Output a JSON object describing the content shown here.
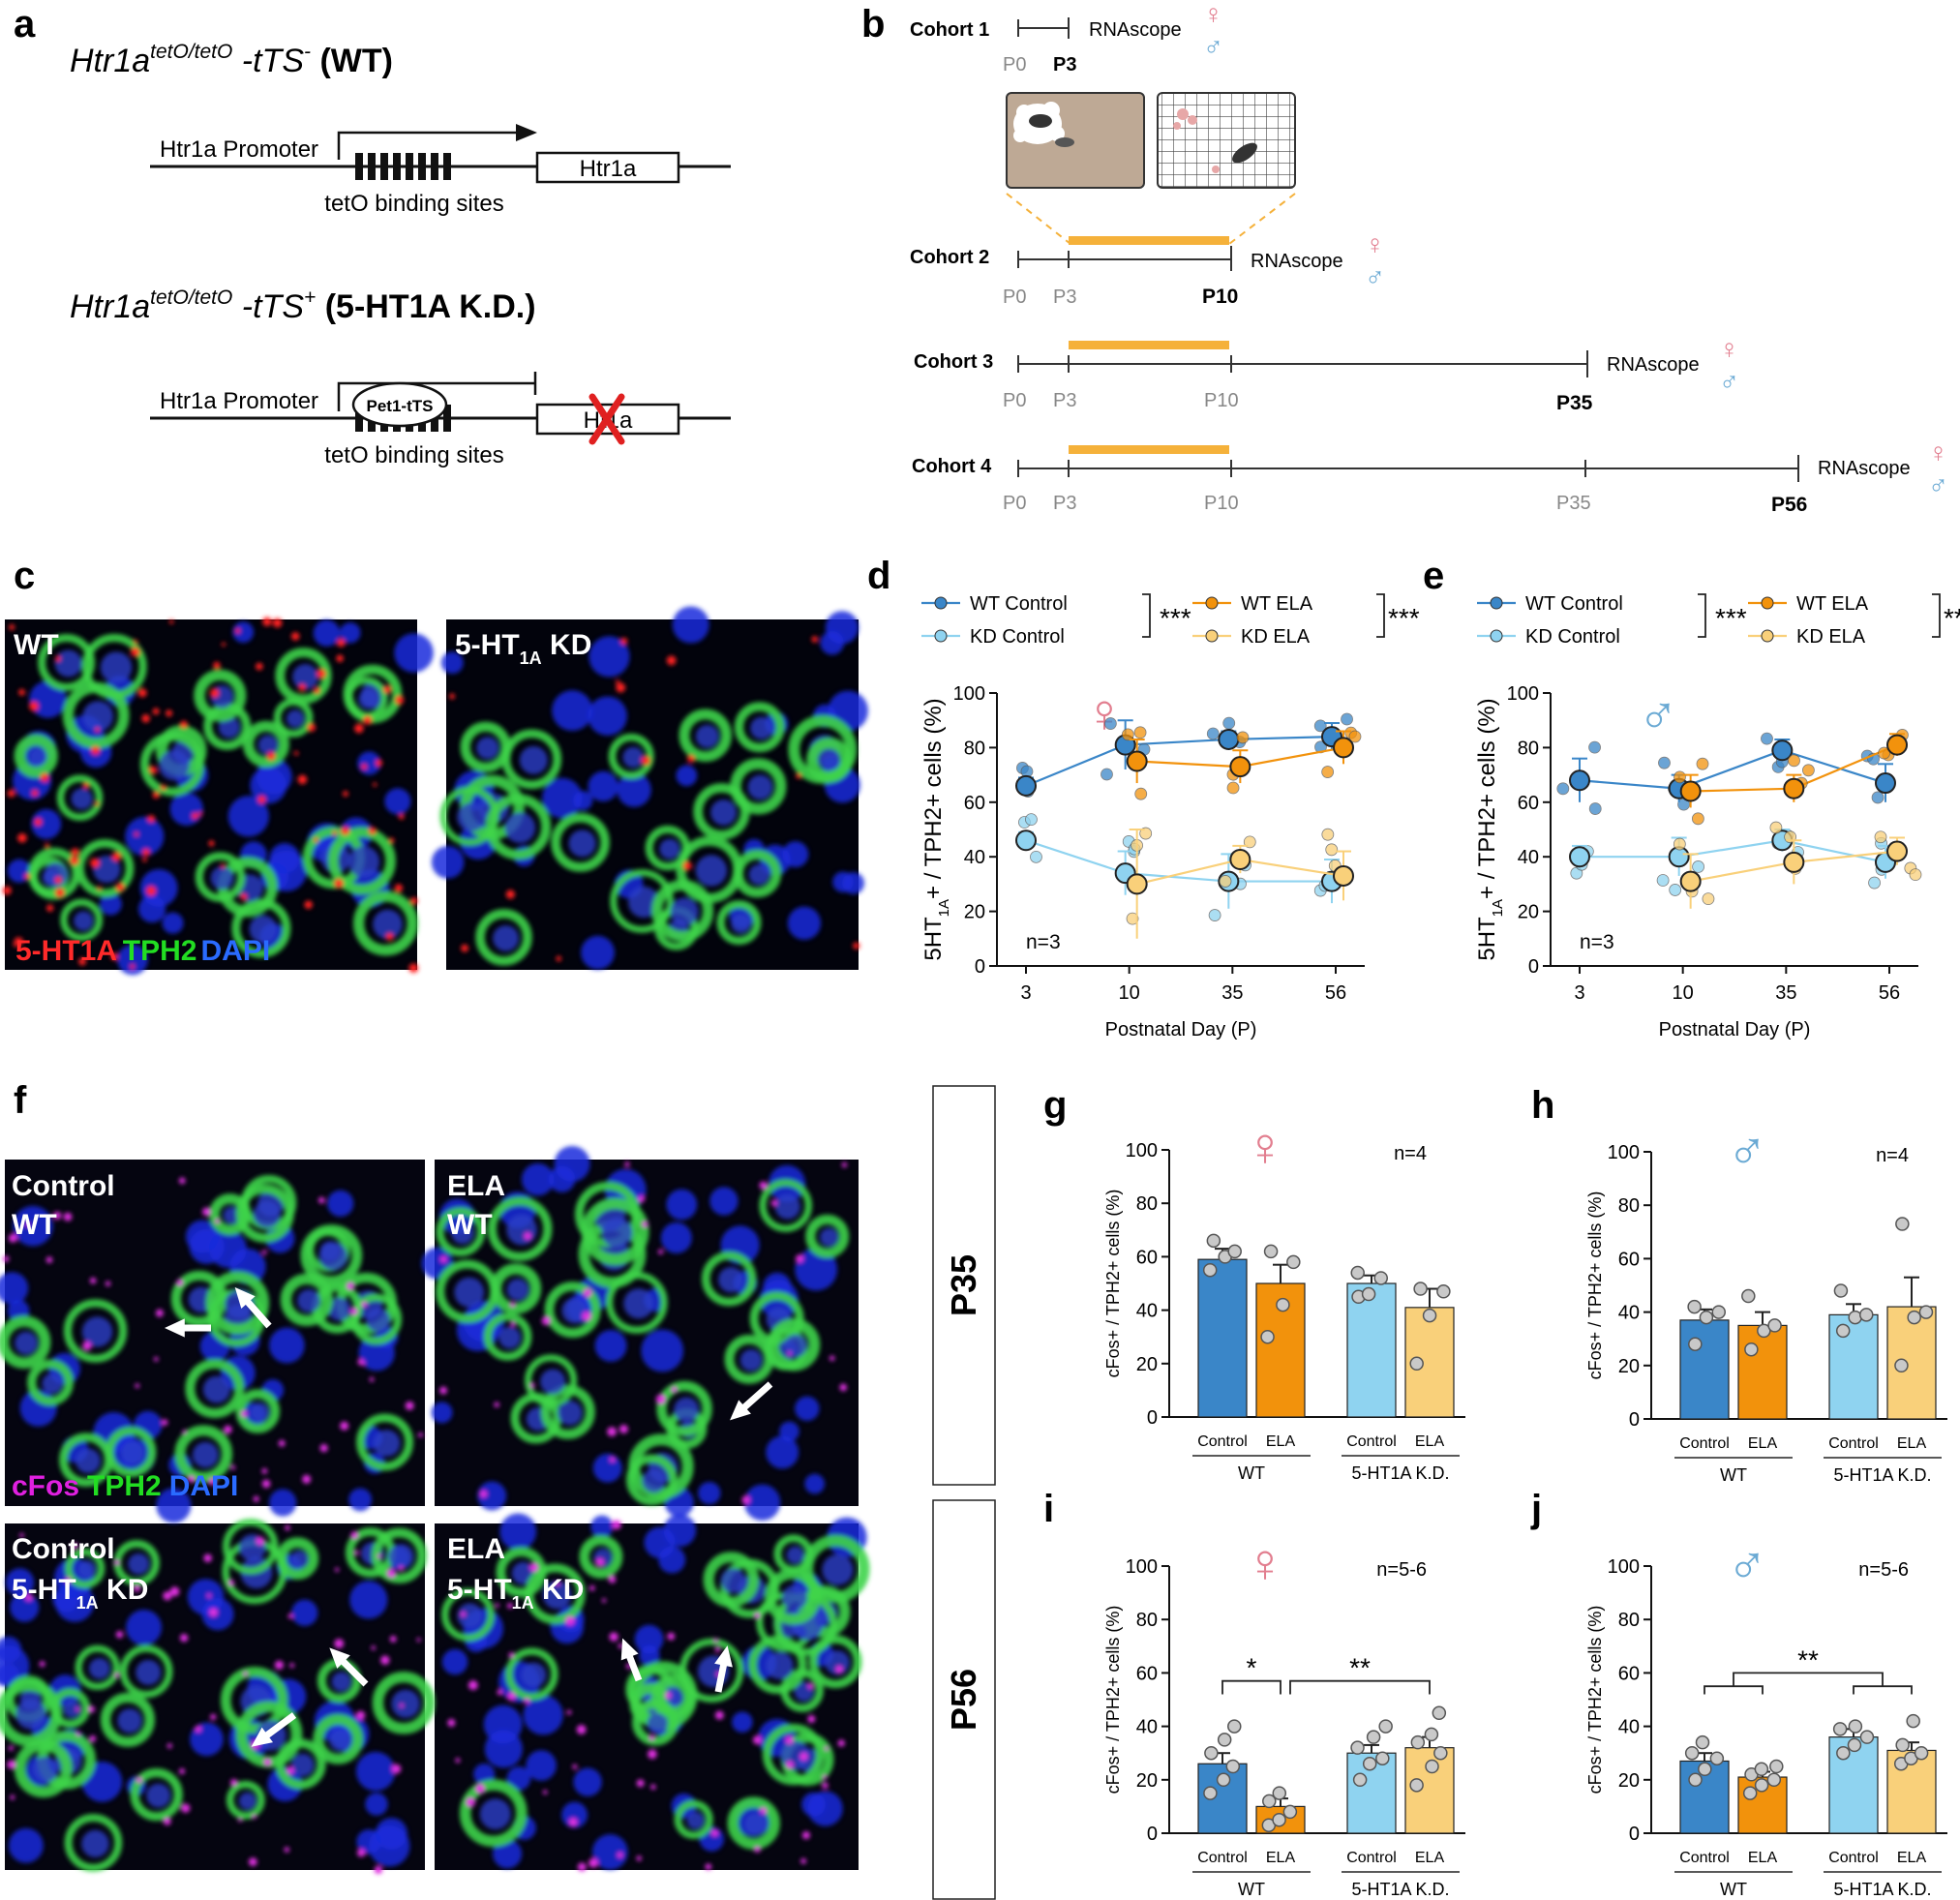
{
  "panel_letters": [
    "a",
    "b",
    "c",
    "d",
    "e",
    "f",
    "g",
    "h",
    "i",
    "j"
  ],
  "panel_a": {
    "wt_title": "Htr1a",
    "wt_sup": "tetO/tetO",
    "wt_suffix": " -tTS",
    "wt_minus": "-",
    "wt_label": " (WT)",
    "kd_title": "Htr1a",
    "kd_sup": "tetO/tetO",
    "kd_suffix": " -tTS",
    "kd_plus": "+",
    "kd_label": " (5-HT1A K.D.)",
    "promoter": "Htr1a Promoter",
    "gene": "Htr1a",
    "kd_gene": "Ht1a",
    "binding_sites": "tetO binding sites",
    "pet1": "Pet1-tTS"
  },
  "panel_b": {
    "cohorts": [
      "Cohort 1",
      "Cohort 2",
      "Cohort 3",
      "Cohort 4"
    ],
    "rnascope": "RNAscope",
    "p0": "P0",
    "p3": "P3",
    "p10": "P10",
    "p35": "P35",
    "p56": "P56",
    "female": "♀",
    "male": "♂"
  },
  "panel_c": {
    "wt": "WT",
    "kd_main": "5-HT",
    "kd_sub": "1A",
    "kd_end": " KD",
    "stain_red": "5-HT1A",
    "stain_green": "TPH2",
    "stain_blue": "DAPI"
  },
  "panel_f": {
    "tl_1": "Control",
    "tl_2": "WT",
    "tr_1": "ELA",
    "tr_2": "WT",
    "bl_1": "Control",
    "bl_2": "5-HT",
    "bl_sub": "1A",
    "bl_end": " KD",
    "br_1": "ELA",
    "br_2": "5-HT",
    "br_sub": "1A",
    "br_end": " KD",
    "stain_m": "cFos",
    "stain_g": "TPH2",
    "stain_b": "DAPI"
  },
  "age_labels": [
    "P35",
    "P56"
  ],
  "colors": {
    "wt_control": "#3A86C8",
    "kd_control": "#8FD3F0",
    "wt_ela": "#F2920C",
    "kd_ela": "#F9D07A",
    "female": "#E27E8F",
    "male": "#6BAAD4",
    "bar_ela_line": "#F5B13A",
    "red_x": "#E02020"
  },
  "chart_data": [
    {
      "panel": "d",
      "type": "line",
      "symbol": "♀",
      "n_label": "n=3",
      "ylabel_main": "5HT",
      "ylabel_sub": "1A",
      "ylabel_end": "+ / TPH2+ cells (%)",
      "xlabel": "Postnatal Day (P)",
      "categories": [
        "3",
        "10",
        "35",
        "56"
      ],
      "ylim": [
        0,
        100
      ],
      "yticks": [
        "0",
        "20",
        "40",
        "60",
        "80",
        "100"
      ],
      "sig": "***",
      "series": [
        {
          "name": "WT Control",
          "color": "#3A86C8",
          "mean": [
            66,
            81,
            83,
            84
          ],
          "err": [
            3,
            9,
            3,
            5
          ]
        },
        {
          "name": "KD Control",
          "color": "#8FD3F0",
          "mean": [
            46,
            34,
            31,
            31
          ],
          "err": [
            3,
            8,
            10,
            8
          ]
        },
        {
          "name": "WT ELA",
          "color": "#F2920C",
          "mean": [
            null,
            75,
            73,
            80
          ],
          "err": [
            null,
            8,
            6,
            6
          ]
        },
        {
          "name": "KD ELA",
          "color": "#F9D07A",
          "mean": [
            null,
            30,
            39,
            33
          ],
          "err": [
            null,
            20,
            5,
            9
          ]
        }
      ]
    },
    {
      "panel": "e",
      "type": "line",
      "symbol": "♂",
      "n_label": "n=3",
      "ylabel_main": "5HT",
      "ylabel_sub": "1A",
      "ylabel_end": "+ / TPH2+ cells (%)",
      "xlabel": "Postnatal Day (P)",
      "categories": [
        "3",
        "10",
        "35",
        "56"
      ],
      "ylim": [
        0,
        100
      ],
      "yticks": [
        "0",
        "20",
        "40",
        "60",
        "80",
        "100"
      ],
      "sig": "***",
      "series": [
        {
          "name": "WT Control",
          "color": "#3A86C8",
          "mean": [
            68,
            65,
            79,
            67
          ],
          "err": [
            8,
            5,
            4,
            7
          ]
        },
        {
          "name": "KD Control",
          "color": "#8FD3F0",
          "mean": [
            40,
            40,
            46,
            38
          ],
          "err": [
            4,
            7,
            4,
            6
          ]
        },
        {
          "name": "WT ELA",
          "color": "#F2920C",
          "mean": [
            null,
            64,
            65,
            81
          ],
          "err": [
            null,
            6,
            5,
            4
          ]
        },
        {
          "name": "KD ELA",
          "color": "#F9D07A",
          "mean": [
            null,
            31,
            38,
            42
          ],
          "err": [
            null,
            10,
            8,
            5
          ]
        }
      ]
    },
    {
      "panel": "g",
      "type": "bar",
      "symbol": "♀",
      "n_label": "n=4",
      "ylabel": "cFos+ / TPH2+ cells (%)",
      "ylim": [
        0,
        100
      ],
      "yticks": [
        "0",
        "20",
        "40",
        "60",
        "80",
        "100"
      ],
      "categories": [
        "Control",
        "ELA",
        "Control",
        "ELA"
      ],
      "groups": [
        "WT",
        "5-HT1A K.D."
      ],
      "values": [
        59,
        50,
        50,
        41
      ],
      "err": [
        4,
        7,
        3,
        7
      ],
      "points": [
        [
          55,
          60,
          62,
          66
        ],
        [
          30,
          42,
          58,
          62
        ],
        [
          45,
          46,
          52,
          54
        ],
        [
          20,
          38,
          47,
          48
        ]
      ]
    },
    {
      "panel": "h",
      "type": "bar",
      "symbol": "♂",
      "n_label": "n=4",
      "ylabel": "cFos+ / TPH2+ cells (%)",
      "ylim": [
        0,
        100
      ],
      "yticks": [
        "0",
        "20",
        "40",
        "60",
        "80",
        "100"
      ],
      "categories": [
        "Control",
        "ELA",
        "Control",
        "ELA"
      ],
      "groups": [
        "WT",
        "5-HT1A K.D."
      ],
      "values": [
        37,
        35,
        39,
        42
      ],
      "err": [
        4,
        5,
        4,
        11
      ],
      "points": [
        [
          28,
          38,
          40,
          42
        ],
        [
          26,
          33,
          35,
          46
        ],
        [
          33,
          38,
          39,
          48
        ],
        [
          20,
          38,
          40,
          73
        ]
      ]
    },
    {
      "panel": "i",
      "type": "bar",
      "symbol": "♀",
      "n_label": "n=5-6",
      "ylabel": "cFos+ / TPH2+ cells (%)",
      "ylim": [
        0,
        100
      ],
      "yticks": [
        "0",
        "20",
        "40",
        "60",
        "80",
        "100"
      ],
      "categories": [
        "Control",
        "ELA",
        "Control",
        "ELA"
      ],
      "groups": [
        "WT",
        "5-HT1A K.D."
      ],
      "values": [
        26,
        10,
        30,
        32
      ],
      "err": [
        4,
        3,
        3,
        4
      ],
      "points": [
        [
          15,
          20,
          25,
          30,
          35,
          40
        ],
        [
          3,
          5,
          8,
          12,
          15
        ],
        [
          20,
          26,
          28,
          32,
          36,
          40
        ],
        [
          18,
          25,
          30,
          34,
          37,
          45
        ]
      ],
      "sig": [
        {
          "label": "*",
          "from": 0,
          "to": 1
        },
        {
          "label": "**",
          "from": 1,
          "to": 3
        }
      ]
    },
    {
      "panel": "j",
      "type": "bar",
      "symbol": "♂",
      "n_label": "n=5-6",
      "ylabel": "cFos+ / TPH2+ cells (%)",
      "ylim": [
        0,
        100
      ],
      "yticks": [
        "0",
        "20",
        "40",
        "60",
        "80",
        "100"
      ],
      "categories": [
        "Control",
        "ELA",
        "Control",
        "ELA"
      ],
      "groups": [
        "WT",
        "5-HT1A K.D."
      ],
      "values": [
        27,
        21,
        36,
        31
      ],
      "err": [
        3,
        2,
        3,
        3
      ],
      "points": [
        [
          20,
          24,
          28,
          30,
          34
        ],
        [
          15,
          18,
          20,
          22,
          24,
          25
        ],
        [
          30,
          33,
          36,
          39,
          40
        ],
        [
          26,
          28,
          30,
          33,
          42
        ]
      ],
      "sig": [
        {
          "label": "**",
          "from": 0,
          "to": 2,
          "grouped": true
        }
      ]
    }
  ]
}
